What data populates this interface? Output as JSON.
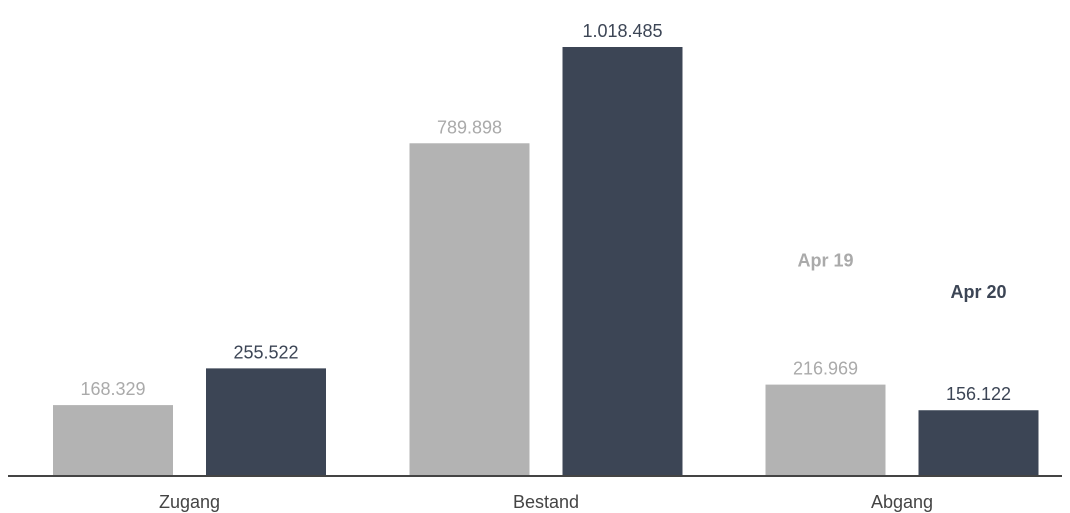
{
  "chart_data": {
    "type": "bar",
    "categories": [
      "Zugang",
      "Bestand",
      "Abgang"
    ],
    "series": [
      {
        "name": "Apr 19",
        "color": "#b3b3b3",
        "values": [
          168329,
          789898,
          216969
        ],
        "labels": [
          "168.329",
          "789.898",
          "216.969"
        ]
      },
      {
        "name": "Apr 20",
        "color": "#3c4555",
        "values": [
          255522,
          1018485,
          156122
        ],
        "labels": [
          "255.522",
          "1.018.485",
          "156.122"
        ]
      }
    ],
    "title": "",
    "xlabel": "",
    "ylabel": "",
    "ylim": [
      0,
      1018485
    ],
    "grid": false,
    "legend_placement": "inline-right"
  }
}
